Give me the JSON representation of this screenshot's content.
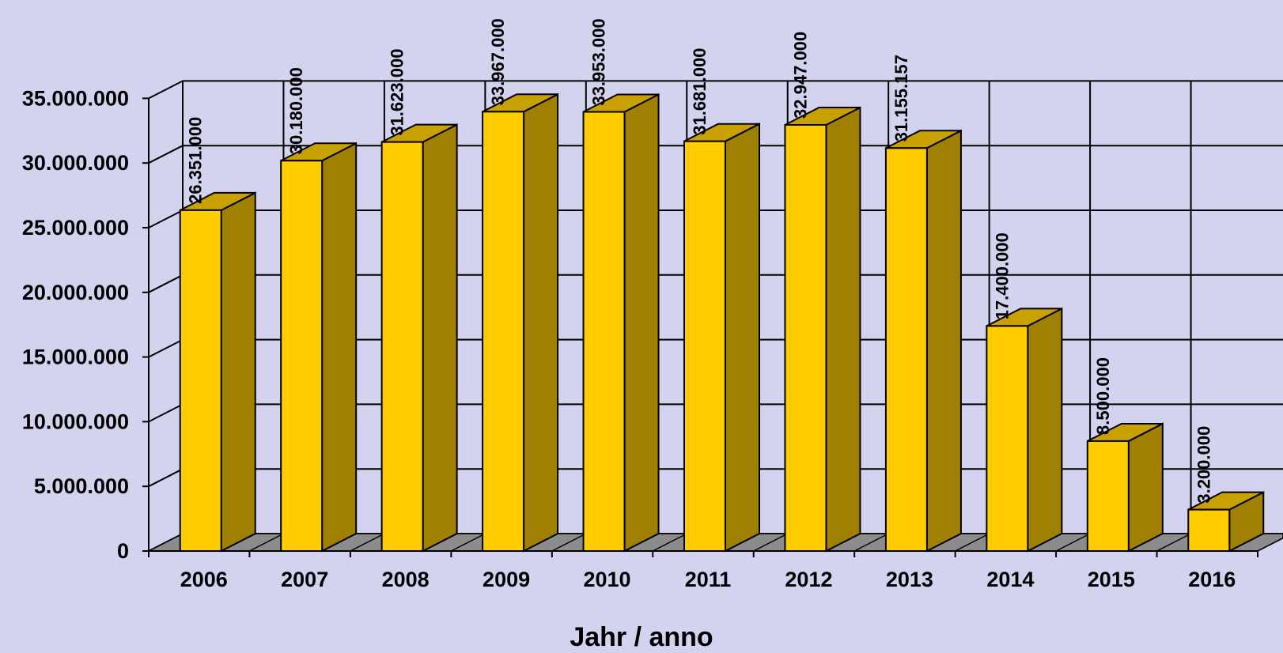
{
  "colors": {
    "background": "#D3D3F0",
    "bar_front": "#FFCC00",
    "bar_side": "#A08000",
    "bar_top": "#C8A000",
    "floor": "#8C8C8C",
    "grid": "#000000"
  },
  "chart_data": {
    "type": "bar",
    "title": "",
    "xlabel": "Jahr / anno",
    "ylabel": "",
    "categories": [
      "2006",
      "2007",
      "2008",
      "2009",
      "2010",
      "2011",
      "2012",
      "2013",
      "2014",
      "2015",
      "2016"
    ],
    "values": [
      26351000,
      30180000,
      31623000,
      33967000,
      33953000,
      31681000,
      32947000,
      31155157,
      17400000,
      8500000,
      3200000
    ],
    "value_labels": [
      "26.351.000",
      "30.180.000",
      "31.623.000",
      "33.967.000",
      "33.953.000",
      "31.681.000",
      "32.947.000",
      "31.155.157",
      "17.400.000",
      "8.500.000",
      "3.200.000"
    ],
    "ylim": [
      0,
      35000000
    ],
    "yticks": [
      0,
      5000000,
      10000000,
      15000000,
      20000000,
      25000000,
      30000000,
      35000000
    ],
    "ytick_labels": [
      "0",
      "5.000.000",
      "10.000.000",
      "15.000.000",
      "20.000.000",
      "25.000.000",
      "30.000.000",
      "35.000.000"
    ],
    "grid": true,
    "style": "3d-column",
    "legend": "none"
  }
}
